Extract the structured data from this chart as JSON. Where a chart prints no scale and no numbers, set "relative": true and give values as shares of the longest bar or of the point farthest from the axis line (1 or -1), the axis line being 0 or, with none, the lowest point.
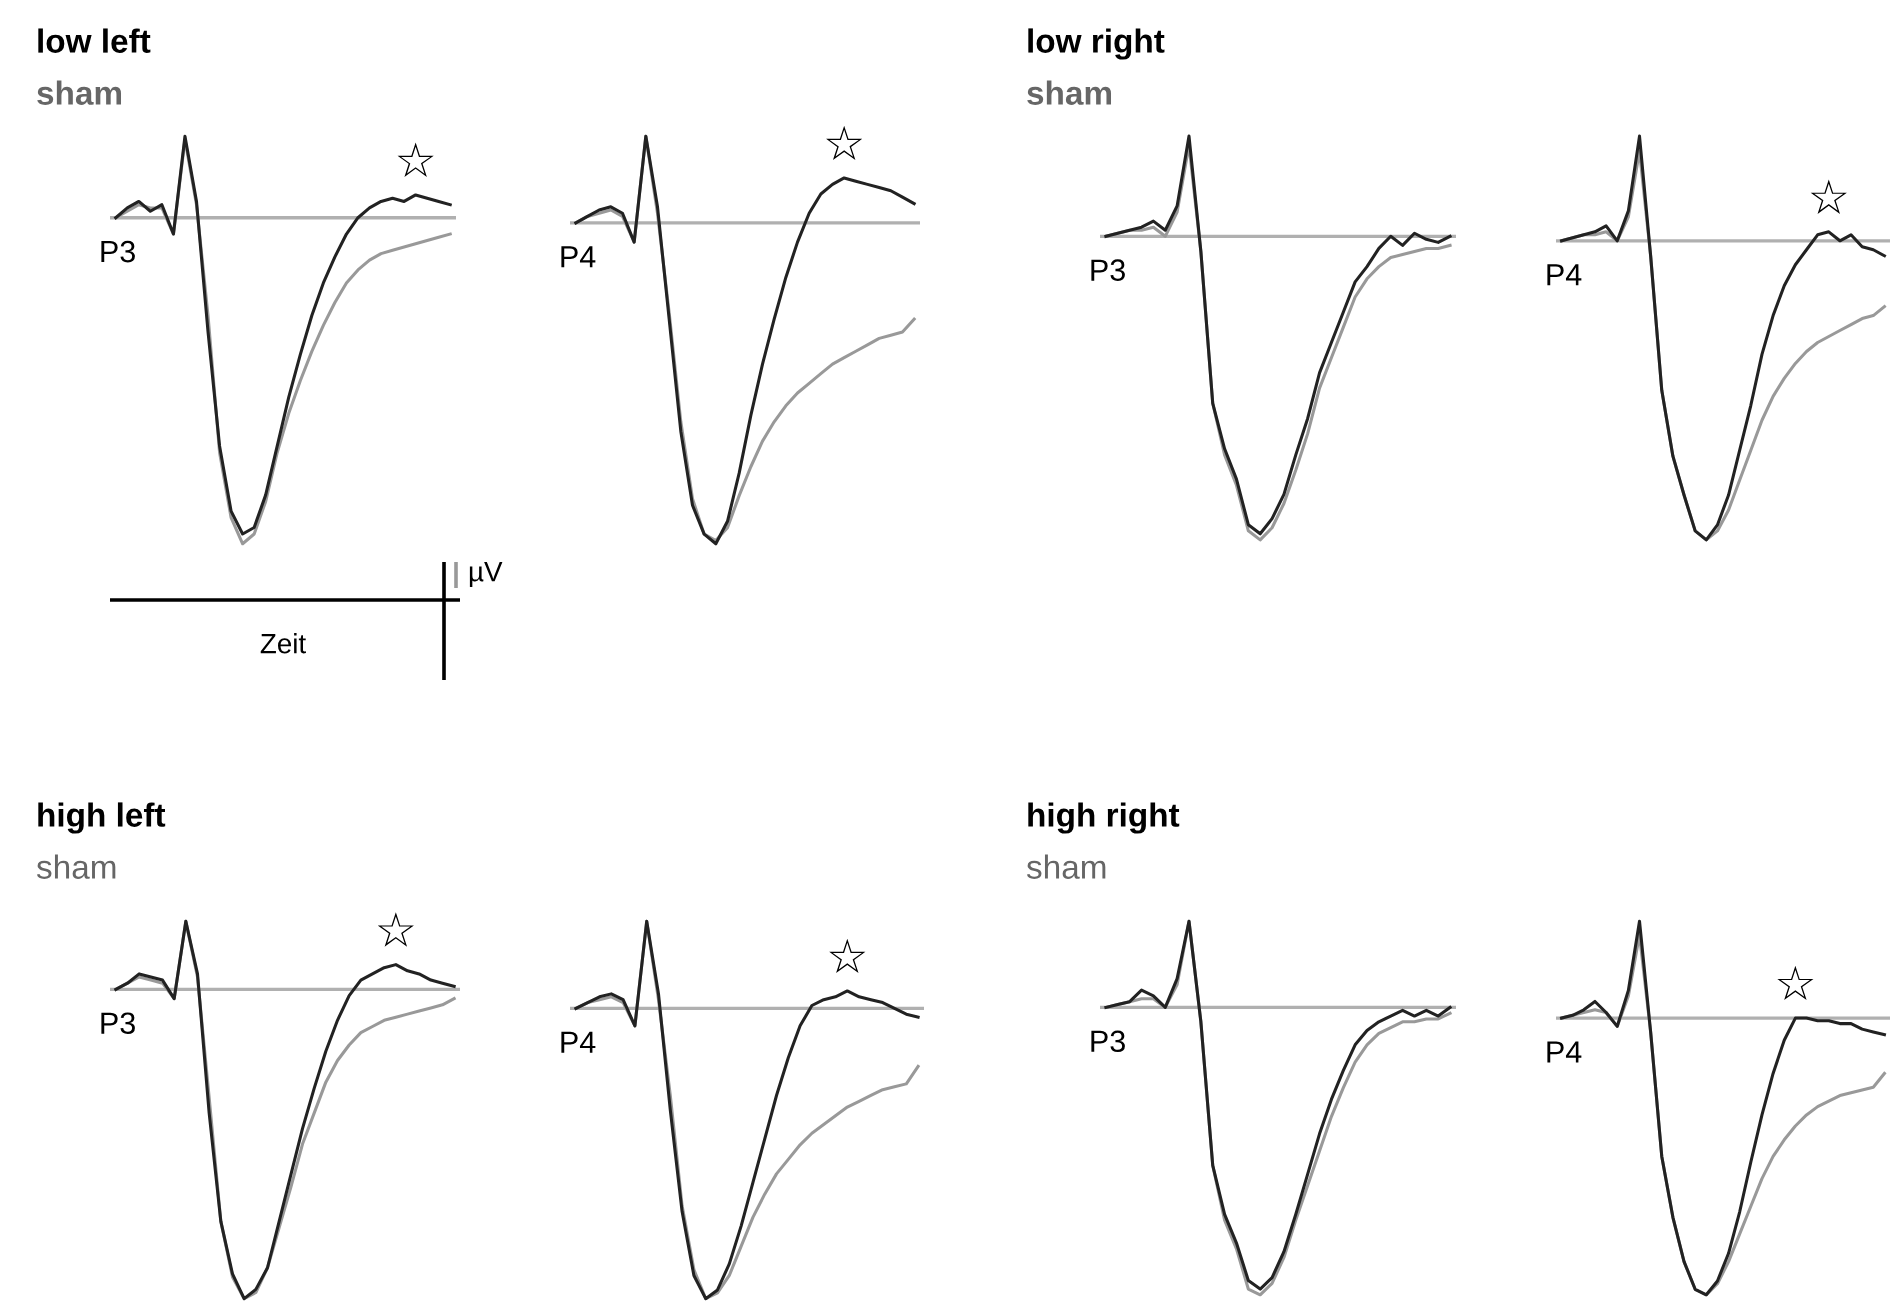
{
  "chart_data": [
    {
      "type": "line",
      "relative": true,
      "title": "low left",
      "legend": false,
      "categories": [
        null,
        null,
        null,
        null,
        null,
        null,
        null,
        null,
        null,
        null,
        null,
        null,
        null,
        null,
        null,
        null,
        null,
        null,
        null,
        null,
        null,
        null,
        null,
        null,
        null,
        null,
        null,
        null,
        null,
        null
      ],
      "annotations": [
        "P3",
        "☆",
        "µV",
        "Zeit"
      ],
      "series": [
        {
          "color": "#222222",
          "values": [
            0,
            0.03,
            0.05,
            0.02,
            0.04,
            -0.05,
            0.25,
            0.05,
            -0.35,
            -0.7,
            -0.9,
            -0.97,
            -0.95,
            -0.85,
            -0.7,
            -0.55,
            -0.42,
            -0.3,
            -0.2,
            -0.12,
            -0.05,
            0.0,
            0.03,
            0.05,
            0.06,
            0.05,
            0.07,
            0.06,
            0.05,
            0.04
          ]
        },
        {
          "name": "sham",
          "color": "#999999",
          "values": [
            0,
            0.02,
            0.04,
            0.03,
            0.03,
            -0.05,
            0.24,
            0.04,
            -0.3,
            -0.72,
            -0.92,
            -1.0,
            -0.97,
            -0.87,
            -0.72,
            -0.6,
            -0.5,
            -0.41,
            -0.33,
            -0.26,
            -0.2,
            -0.16,
            -0.13,
            -0.11,
            -0.1,
            -0.09,
            -0.08,
            -0.07,
            -0.06,
            -0.05
          ]
        }
      ]
    },
    {
      "type": "line",
      "relative": true,
      "legend": false,
      "categories": [
        null,
        null,
        null,
        null,
        null,
        null,
        null,
        null,
        null,
        null,
        null,
        null,
        null,
        null,
        null,
        null,
        null,
        null,
        null,
        null,
        null,
        null,
        null,
        null,
        null,
        null,
        null,
        null,
        null,
        null
      ],
      "annotations": [
        "P4",
        "☆"
      ],
      "series": [
        {
          "color": "#222222",
          "values": [
            0,
            0.02,
            0.04,
            0.05,
            0.03,
            -0.06,
            0.27,
            0.05,
            -0.3,
            -0.65,
            -0.88,
            -0.97,
            -1.0,
            -0.93,
            -0.78,
            -0.6,
            -0.44,
            -0.3,
            -0.17,
            -0.06,
            0.03,
            0.09,
            0.12,
            0.14,
            0.13,
            0.12,
            0.11,
            0.1,
            0.08,
            0.06
          ]
        },
        {
          "color": "#999999",
          "values": [
            0,
            0.02,
            0.03,
            0.04,
            0.02,
            -0.06,
            0.27,
            0.03,
            -0.28,
            -0.62,
            -0.86,
            -0.97,
            -0.99,
            -0.95,
            -0.85,
            -0.76,
            -0.68,
            -0.62,
            -0.57,
            -0.53,
            -0.5,
            -0.47,
            -0.44,
            -0.42,
            -0.4,
            -0.38,
            -0.36,
            -0.35,
            -0.34,
            -0.3
          ]
        }
      ]
    },
    {
      "type": "line",
      "relative": true,
      "title": "low right",
      "legend": false,
      "categories": [
        null,
        null,
        null,
        null,
        null,
        null,
        null,
        null,
        null,
        null,
        null,
        null,
        null,
        null,
        null,
        null,
        null,
        null,
        null,
        null,
        null,
        null,
        null,
        null,
        null,
        null,
        null,
        null,
        null,
        null
      ],
      "annotations": [
        "P3"
      ],
      "series": [
        {
          "color": "#222222",
          "values": [
            0,
            0.01,
            0.02,
            0.03,
            0.05,
            0.02,
            0.1,
            0.33,
            -0.05,
            -0.55,
            -0.7,
            -0.8,
            -0.95,
            -0.98,
            -0.93,
            -0.85,
            -0.72,
            -0.6,
            -0.45,
            -0.35,
            -0.25,
            -0.15,
            -0.1,
            -0.04,
            0.0,
            -0.03,
            0.01,
            -0.01,
            -0.02,
            0.0
          ]
        },
        {
          "name": "sham",
          "color": "#999999",
          "values": [
            0,
            0.01,
            0.02,
            0.02,
            0.03,
            0.0,
            0.08,
            0.3,
            -0.05,
            -0.55,
            -0.72,
            -0.82,
            -0.97,
            -1.0,
            -0.96,
            -0.88,
            -0.77,
            -0.65,
            -0.5,
            -0.4,
            -0.3,
            -0.2,
            -0.14,
            -0.1,
            -0.07,
            -0.06,
            -0.05,
            -0.04,
            -0.04,
            -0.03
          ]
        }
      ]
    },
    {
      "type": "line",
      "relative": true,
      "legend": false,
      "categories": [
        null,
        null,
        null,
        null,
        null,
        null,
        null,
        null,
        null,
        null,
        null,
        null,
        null,
        null,
        null,
        null,
        null,
        null,
        null,
        null,
        null,
        null,
        null,
        null,
        null,
        null,
        null,
        null,
        null,
        null
      ],
      "annotations": [
        "P4",
        "☆"
      ],
      "series": [
        {
          "color": "#222222",
          "values": [
            0,
            0.01,
            0.02,
            0.03,
            0.05,
            0.0,
            0.1,
            0.35,
            -0.05,
            -0.5,
            -0.72,
            -0.85,
            -0.97,
            -1.0,
            -0.95,
            -0.85,
            -0.7,
            -0.55,
            -0.38,
            -0.25,
            -0.15,
            -0.08,
            -0.03,
            0.02,
            0.03,
            0.0,
            0.02,
            -0.02,
            -0.03,
            -0.05
          ]
        },
        {
          "color": "#999999",
          "values": [
            0,
            0.01,
            0.02,
            0.02,
            0.03,
            0.0,
            0.08,
            0.3,
            -0.05,
            -0.5,
            -0.72,
            -0.85,
            -0.97,
            -1.0,
            -0.97,
            -0.9,
            -0.8,
            -0.7,
            -0.6,
            -0.52,
            -0.46,
            -0.41,
            -0.37,
            -0.34,
            -0.32,
            -0.3,
            -0.28,
            -0.26,
            -0.25,
            -0.22
          ]
        }
      ]
    },
    {
      "type": "line",
      "relative": true,
      "title": "high left",
      "legend": false,
      "categories": [
        null,
        null,
        null,
        null,
        null,
        null,
        null,
        null,
        null,
        null,
        null,
        null,
        null,
        null,
        null,
        null,
        null,
        null,
        null,
        null,
        null,
        null,
        null,
        null,
        null,
        null,
        null,
        null,
        null,
        null
      ],
      "annotations": [
        "P3",
        "☆"
      ],
      "series": [
        {
          "color": "#222222",
          "values": [
            0,
            0.02,
            0.05,
            0.04,
            0.03,
            -0.03,
            0.22,
            0.05,
            -0.4,
            -0.75,
            -0.92,
            -1.0,
            -0.97,
            -0.9,
            -0.75,
            -0.6,
            -0.45,
            -0.32,
            -0.2,
            -0.1,
            -0.02,
            0.03,
            0.05,
            0.07,
            0.08,
            0.06,
            0.05,
            0.03,
            0.02,
            0.01
          ]
        },
        {
          "name": "sham",
          "color": "#999999",
          "values": [
            0,
            0.02,
            0.04,
            0.03,
            0.02,
            -0.03,
            0.22,
            0.04,
            -0.35,
            -0.75,
            -0.93,
            -1.0,
            -0.98,
            -0.9,
            -0.77,
            -0.64,
            -0.5,
            -0.4,
            -0.3,
            -0.23,
            -0.18,
            -0.14,
            -0.12,
            -0.1,
            -0.09,
            -0.08,
            -0.07,
            -0.06,
            -0.05,
            -0.03
          ]
        }
      ]
    },
    {
      "type": "line",
      "relative": true,
      "legend": false,
      "categories": [
        null,
        null,
        null,
        null,
        null,
        null,
        null,
        null,
        null,
        null,
        null,
        null,
        null,
        null,
        null,
        null,
        null,
        null,
        null,
        null,
        null,
        null,
        null,
        null,
        null,
        null,
        null,
        null,
        null,
        null
      ],
      "annotations": [
        "P4",
        "☆"
      ],
      "series": [
        {
          "color": "#222222",
          "values": [
            0,
            0.02,
            0.04,
            0.05,
            0.03,
            -0.06,
            0.3,
            0.05,
            -0.35,
            -0.7,
            -0.92,
            -1.0,
            -0.97,
            -0.88,
            -0.75,
            -0.6,
            -0.45,
            -0.3,
            -0.17,
            -0.06,
            0.01,
            0.03,
            0.04,
            0.06,
            0.04,
            0.03,
            0.02,
            0.0,
            -0.02,
            -0.03
          ]
        },
        {
          "color": "#999999",
          "values": [
            0,
            0.02,
            0.03,
            0.04,
            0.02,
            -0.06,
            0.3,
            0.03,
            -0.3,
            -0.68,
            -0.9,
            -1.0,
            -0.98,
            -0.92,
            -0.82,
            -0.72,
            -0.64,
            -0.57,
            -0.52,
            -0.47,
            -0.43,
            -0.4,
            -0.37,
            -0.34,
            -0.32,
            -0.3,
            -0.28,
            -0.27,
            -0.26,
            -0.2
          ]
        }
      ]
    },
    {
      "type": "line",
      "relative": true,
      "title": "high right",
      "legend": false,
      "categories": [
        null,
        null,
        null,
        null,
        null,
        null,
        null,
        null,
        null,
        null,
        null,
        null,
        null,
        null,
        null,
        null,
        null,
        null,
        null,
        null,
        null,
        null,
        null,
        null,
        null,
        null,
        null,
        null,
        null,
        null
      ],
      "annotations": [
        "P3"
      ],
      "series": [
        {
          "color": "#222222",
          "values": [
            0,
            0.01,
            0.02,
            0.06,
            0.04,
            0.0,
            0.1,
            0.3,
            -0.05,
            -0.55,
            -0.72,
            -0.82,
            -0.95,
            -0.98,
            -0.94,
            -0.85,
            -0.72,
            -0.58,
            -0.44,
            -0.32,
            -0.22,
            -0.13,
            -0.08,
            -0.05,
            -0.03,
            -0.01,
            -0.03,
            -0.01,
            -0.03,
            0.0
          ]
        },
        {
          "name": "sham",
          "color": "#999999",
          "values": [
            0,
            0.01,
            0.02,
            0.03,
            0.03,
            0.0,
            0.08,
            0.3,
            -0.05,
            -0.55,
            -0.74,
            -0.84,
            -0.98,
            -1.0,
            -0.96,
            -0.87,
            -0.74,
            -0.62,
            -0.5,
            -0.38,
            -0.28,
            -0.19,
            -0.13,
            -0.09,
            -0.07,
            -0.05,
            -0.05,
            -0.04,
            -0.04,
            -0.02
          ]
        }
      ]
    },
    {
      "type": "line",
      "relative": true,
      "legend": false,
      "categories": [
        null,
        null,
        null,
        null,
        null,
        null,
        null,
        null,
        null,
        null,
        null,
        null,
        null,
        null,
        null,
        null,
        null,
        null,
        null,
        null,
        null,
        null,
        null,
        null,
        null,
        null,
        null,
        null,
        null,
        null
      ],
      "annotations": [
        "P4",
        "☆"
      ],
      "series": [
        {
          "color": "#222222",
          "values": [
            0,
            0.01,
            0.03,
            0.06,
            0.02,
            -0.03,
            0.1,
            0.35,
            -0.05,
            -0.5,
            -0.72,
            -0.88,
            -0.98,
            -1.0,
            -0.95,
            -0.85,
            -0.7,
            -0.52,
            -0.35,
            -0.2,
            -0.08,
            0.0,
            0.0,
            -0.01,
            -0.01,
            -0.02,
            -0.02,
            -0.04,
            -0.05,
            -0.06
          ]
        },
        {
          "color": "#999999",
          "values": [
            0,
            0.01,
            0.02,
            0.03,
            0.02,
            -0.03,
            0.08,
            0.3,
            -0.05,
            -0.5,
            -0.72,
            -0.88,
            -0.98,
            -1.0,
            -0.96,
            -0.88,
            -0.78,
            -0.68,
            -0.58,
            -0.5,
            -0.44,
            -0.39,
            -0.35,
            -0.32,
            -0.3,
            -0.28,
            -0.27,
            -0.26,
            -0.25,
            -0.2
          ]
        }
      ]
    }
  ]
}
